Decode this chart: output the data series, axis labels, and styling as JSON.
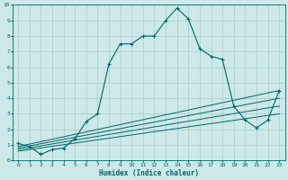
{
  "xlabel": "Humidex (Indice chaleur)",
  "background_color": "#cce8e8",
  "grid_color": "#aacccc",
  "line_color": "#006666",
  "xlim": [
    -0.5,
    23.5
  ],
  "ylim": [
    0,
    10
  ],
  "xticks": [
    0,
    1,
    2,
    3,
    4,
    5,
    6,
    7,
    8,
    9,
    10,
    11,
    12,
    13,
    14,
    15,
    16,
    17,
    18,
    19,
    20,
    21,
    22,
    23
  ],
  "yticks": [
    0,
    1,
    2,
    3,
    4,
    5,
    6,
    7,
    8,
    9,
    10
  ],
  "main_line": {
    "x": [
      0,
      1,
      2,
      3,
      4,
      5,
      6,
      7,
      8,
      9,
      10,
      11,
      12,
      13,
      14,
      15,
      16,
      17,
      18,
      19,
      20,
      21,
      22,
      23
    ],
    "y": [
      1.1,
      0.9,
      0.4,
      0.7,
      0.8,
      1.4,
      2.5,
      3.0,
      6.2,
      7.5,
      7.5,
      8.0,
      8.0,
      9.0,
      9.8,
      9.1,
      7.2,
      6.7,
      6.5,
      3.5,
      2.6,
      2.1,
      2.6,
      4.5
    ]
  },
  "ref_lines": [
    {
      "x": [
        0,
        23
      ],
      "y": [
        0.9,
        4.5
      ]
    },
    {
      "x": [
        0,
        23
      ],
      "y": [
        0.8,
        4.0
      ]
    },
    {
      "x": [
        0,
        23
      ],
      "y": [
        0.7,
        3.5
      ]
    },
    {
      "x": [
        0,
        23
      ],
      "y": [
        0.6,
        3.0
      ]
    }
  ]
}
